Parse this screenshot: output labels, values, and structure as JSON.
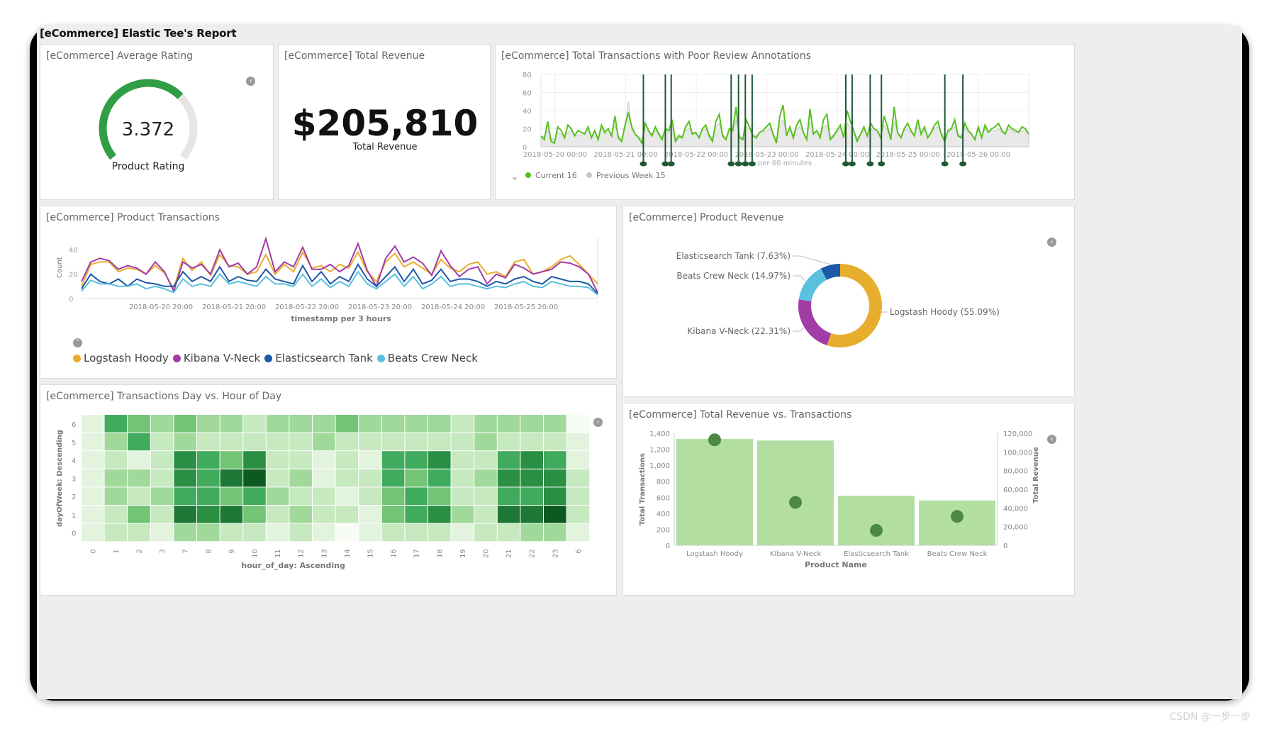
{
  "report": {
    "title": "[eCommerce] Elastic Tee's Report"
  },
  "watermark": "CSDN @一步一步",
  "colors": {
    "gauge_green": "#2f9e44",
    "gauge_track": "#e6e6e6",
    "current_green": "#57c01f",
    "annotation_green": "#1f5a36",
    "prev_gray": "#c8c8c8",
    "logstash": "#e7ae2e",
    "kibana": "#a23ca6",
    "elasticsearch": "#1e58a8",
    "beats": "#5bc0de",
    "bar_green": "#b3dea2",
    "dot_green": "#4c8a41"
  },
  "panels": {
    "rating": {
      "title": "[eCommerce] Average Rating"
    },
    "revenue": {
      "title": "[eCommerce] Total Revenue"
    },
    "poor_review": {
      "title": "[eCommerce] Total Transactions with Poor Review Annotations"
    },
    "product_tx": {
      "title": "[eCommerce] Product Transactions"
    },
    "product_rev": {
      "title": "[eCommerce] Product Revenue"
    },
    "heatmap": {
      "title": "[eCommerce] Transactions Day vs. Hour of Day"
    },
    "rev_vs_tx": {
      "title": "[eCommerce] Total Revenue vs. Transactions"
    }
  },
  "chart_data": [
    {
      "id": "average-rating",
      "type": "gauge",
      "value": 3.372,
      "value_label": "3.372",
      "label": "Product Rating",
      "range": [
        0,
        5
      ]
    },
    {
      "id": "total-revenue",
      "type": "metric",
      "value_label": "$205,810",
      "label": "Total Revenue"
    },
    {
      "id": "poor-review-annotations",
      "type": "line",
      "ylim": [
        0,
        80
      ],
      "yticks": [
        "80",
        "60",
        "40",
        "20",
        "0"
      ],
      "xticks": [
        "2018-05-20 00:00",
        "2018-05-21 00:00",
        "2018-05-22 00:00",
        "2018-05-23 00:00",
        "2018-05-24 00:00",
        "2018-05-25 00:00",
        "2018-05-26 00:00"
      ],
      "xlabel": "per 60 minutes",
      "grid": true,
      "series": [
        {
          "name": "Current",
          "legend_value": "16",
          "values": [
            12,
            8,
            28,
            6,
            4,
            22,
            18,
            10,
            24,
            20,
            12,
            18,
            16,
            14,
            22,
            10,
            18,
            8,
            24,
            16,
            20,
            12,
            34,
            10,
            6,
            24,
            38,
            22,
            14,
            10,
            4,
            26,
            18,
            12,
            22,
            14,
            8,
            20,
            18,
            30,
            6,
            12,
            10,
            22,
            28,
            14,
            16,
            10,
            20,
            24,
            12,
            6,
            28,
            36,
            12,
            8,
            20,
            18,
            44,
            10,
            8,
            30,
            22,
            12,
            10,
            16,
            18,
            22,
            26,
            14,
            4,
            34,
            46,
            12,
            22,
            10,
            24,
            30,
            16,
            8,
            42,
            14,
            18,
            10,
            30,
            36,
            8,
            12,
            18,
            24,
            10,
            40,
            28,
            18,
            6,
            14,
            22,
            12,
            26,
            20,
            18,
            10,
            34,
            22,
            8,
            44,
            16,
            10,
            20,
            26,
            18,
            12,
            30,
            14,
            22,
            10,
            16,
            24,
            28,
            14,
            6,
            18,
            20,
            30,
            12,
            10,
            26,
            18,
            14,
            8,
            22,
            10,
            24,
            16,
            20,
            22,
            26,
            18,
            14,
            24,
            20,
            18,
            16,
            22,
            20,
            14
          ]
        },
        {
          "name": "Previous Week",
          "legend_value": "15",
          "values": [
            10,
            12,
            18,
            10,
            8,
            16,
            14,
            12,
            16,
            18,
            14,
            12,
            14,
            16,
            18,
            12,
            16,
            10,
            20,
            14,
            16,
            14,
            24,
            12,
            8,
            20,
            50,
            18,
            14,
            12,
            8,
            20,
            16,
            14,
            18,
            16,
            10,
            18,
            16,
            22,
            8,
            14,
            12,
            18,
            20,
            16,
            14,
            12,
            18,
            20,
            14,
            10,
            22,
            26,
            14,
            10,
            18,
            16,
            30,
            12,
            10,
            22,
            20,
            14,
            12,
            16,
            16,
            18,
            20,
            16,
            8,
            24,
            30,
            14,
            18,
            12,
            20,
            22,
            16,
            10,
            28,
            16,
            16,
            12,
            22,
            24,
            10,
            14,
            16,
            20,
            12,
            26,
            22,
            16,
            10,
            14,
            18,
            14,
            20,
            18,
            16,
            12,
            24,
            18,
            10,
            28,
            16,
            12,
            18,
            20,
            16,
            14,
            22,
            16,
            18,
            12,
            16,
            20,
            22,
            16,
            10,
            16,
            18,
            22,
            14,
            12,
            20,
            16,
            14,
            10,
            18,
            12,
            20,
            16,
            18,
            18,
            20,
            16,
            14,
            20,
            18,
            16,
            16,
            18,
            18,
            14
          ]
        }
      ],
      "annotation_positions": [
        0.21,
        0.255,
        0.267,
        0.39,
        0.405,
        0.419,
        0.433,
        0.625,
        0.638,
        0.675,
        0.698,
        0.828,
        0.865
      ]
    },
    {
      "id": "product-transactions",
      "type": "line",
      "ylabel": "Count",
      "xlabel": "timestamp per 3 hours",
      "ylim": [
        0,
        50
      ],
      "yticks": [
        "40",
        "20",
        "0"
      ],
      "xticks": [
        "2018-05-20 20:00",
        "2018-05-21 20:00",
        "2018-05-22 20:00",
        "2018-05-23 20:00",
        "2018-05-24 20:00",
        "2018-05-25 20:00"
      ],
      "legend_placement": "bottom-left",
      "series": [
        {
          "name": "Logstash Hoody",
          "values": [
            10,
            28,
            30,
            30,
            22,
            25,
            24,
            20,
            27,
            21,
            8,
            33,
            23,
            30,
            19,
            36,
            27,
            26,
            20,
            22,
            36,
            20,
            28,
            22,
            38,
            25,
            27,
            22,
            28,
            25,
            38,
            22,
            14,
            30,
            37,
            26,
            30,
            25,
            20,
            32,
            25,
            22,
            28,
            30,
            20,
            22,
            18,
            30,
            32,
            20,
            22,
            26,
            32,
            35,
            28,
            20,
            12
          ]
        },
        {
          "name": "Kibana V-Neck",
          "values": [
            14,
            30,
            33,
            31,
            24,
            27,
            25,
            20,
            30,
            22,
            6,
            30,
            25,
            28,
            20,
            40,
            26,
            29,
            20,
            26,
            49,
            22,
            30,
            26,
            42,
            24,
            24,
            28,
            22,
            27,
            45,
            23,
            10,
            33,
            43,
            30,
            34,
            29,
            19,
            39,
            27,
            18,
            24,
            26,
            12,
            20,
            17,
            28,
            25,
            20,
            22,
            24,
            30,
            29,
            26,
            20,
            5
          ]
        },
        {
          "name": "Elasticsearch Tank",
          "values": [
            8,
            20,
            14,
            12,
            16,
            10,
            16,
            13,
            12,
            10,
            10,
            22,
            14,
            18,
            14,
            26,
            14,
            18,
            15,
            14,
            24,
            16,
            14,
            12,
            27,
            14,
            22,
            12,
            18,
            14,
            28,
            16,
            10,
            18,
            26,
            14,
            24,
            12,
            15,
            24,
            14,
            16,
            16,
            14,
            10,
            14,
            12,
            16,
            18,
            14,
            12,
            18,
            16,
            14,
            14,
            12,
            4
          ]
        },
        {
          "name": "Beats Crew Neck",
          "values": [
            6,
            15,
            12,
            12,
            10,
            10,
            12,
            8,
            10,
            8,
            5,
            16,
            10,
            12,
            10,
            20,
            12,
            14,
            12,
            10,
            18,
            12,
            12,
            10,
            20,
            10,
            16,
            9,
            14,
            10,
            22,
            12,
            8,
            14,
            20,
            10,
            18,
            8,
            12,
            18,
            10,
            12,
            12,
            10,
            8,
            10,
            9,
            12,
            14,
            10,
            9,
            14,
            12,
            10,
            10,
            9,
            3
          ]
        }
      ]
    },
    {
      "id": "product-revenue",
      "type": "pie",
      "donut": true,
      "slices": [
        {
          "label": "Logstash Hoody (55.09%)",
          "value": 55.09,
          "color_key": "logstash"
        },
        {
          "label": "Kibana V-Neck (22.31%)",
          "value": 22.31,
          "color_key": "kibana"
        },
        {
          "label": "Beats Crew Neck (14.97%)",
          "value": 14.97,
          "color_key": "beats"
        },
        {
          "label": "Elasticsearch Tank (7.63%)",
          "value": 7.63,
          "color_key": "elasticsearch"
        }
      ]
    },
    {
      "id": "transactions-heatmap",
      "type": "heatmap",
      "ylabel": "dayOfWeek: Descending",
      "xlabel": "hour_of_day: Ascending",
      "y_categories": [
        "6",
        "5",
        "4",
        "3",
        "2",
        "1",
        "0"
      ],
      "x_categories": [
        "0",
        "1",
        "2",
        "3",
        "7",
        "8",
        "9",
        "10",
        "11",
        "12",
        "13",
        "14",
        "15",
        "16",
        "17",
        "18",
        "19",
        "20",
        "21",
        "22",
        "23",
        "6"
      ],
      "values": [
        [
          1,
          5,
          4,
          3,
          4,
          3,
          3,
          2,
          3,
          3,
          3,
          4,
          3,
          3,
          3,
          3,
          2,
          3,
          3,
          3,
          3,
          0
        ],
        [
          1,
          3,
          5,
          2,
          3,
          2,
          2,
          2,
          2,
          2,
          3,
          2,
          2,
          2,
          2,
          2,
          2,
          3,
          2,
          2,
          2,
          1
        ],
        [
          1,
          2,
          1,
          2,
          6,
          5,
          4,
          6,
          2,
          2,
          1,
          2,
          1,
          5,
          5,
          6,
          2,
          2,
          5,
          6,
          5,
          1
        ],
        [
          1,
          3,
          3,
          2,
          6,
          5,
          7,
          8,
          2,
          3,
          1,
          2,
          2,
          5,
          4,
          5,
          2,
          3,
          6,
          6,
          6,
          2
        ],
        [
          1,
          3,
          2,
          3,
          5,
          5,
          4,
          5,
          3,
          2,
          2,
          1,
          2,
          4,
          5,
          4,
          2,
          2,
          5,
          5,
          6,
          2
        ],
        [
          1,
          2,
          4,
          2,
          7,
          6,
          7,
          4,
          2,
          3,
          2,
          2,
          1,
          4,
          5,
          6,
          3,
          2,
          7,
          7,
          8,
          2
        ],
        [
          1,
          2,
          2,
          1,
          3,
          3,
          2,
          2,
          1,
          2,
          1,
          0,
          1,
          2,
          2,
          2,
          1,
          2,
          2,
          3,
          3,
          1
        ]
      ],
      "value_range": [
        0,
        8
      ]
    },
    {
      "id": "revenue-vs-transactions",
      "type": "bar",
      "categories": [
        "Logstash Hoody",
        "Kibana V-Neck",
        "Elasticsearch Tank",
        "Beats Crew Neck"
      ],
      "xlabel": "Product Name",
      "ylabel": "Total Transactions",
      "y2label": "Total Revenue",
      "ylim": [
        0,
        1400
      ],
      "y2lim": [
        0,
        120000
      ],
      "yticks": [
        "1,400",
        "1,200",
        "1,000",
        "800",
        "600",
        "400",
        "200",
        "0"
      ],
      "y2ticks": [
        "120,000",
        "100,000",
        "80,000",
        "60,000",
        "40,000",
        "20,000",
        "0"
      ],
      "series": [
        {
          "name": "Total Transactions",
          "kind": "bar",
          "values": [
            1330,
            1310,
            620,
            560
          ]
        },
        {
          "name": "Total Revenue",
          "kind": "dot",
          "values": [
            113000,
            46000,
            16000,
            31000
          ]
        }
      ]
    }
  ]
}
